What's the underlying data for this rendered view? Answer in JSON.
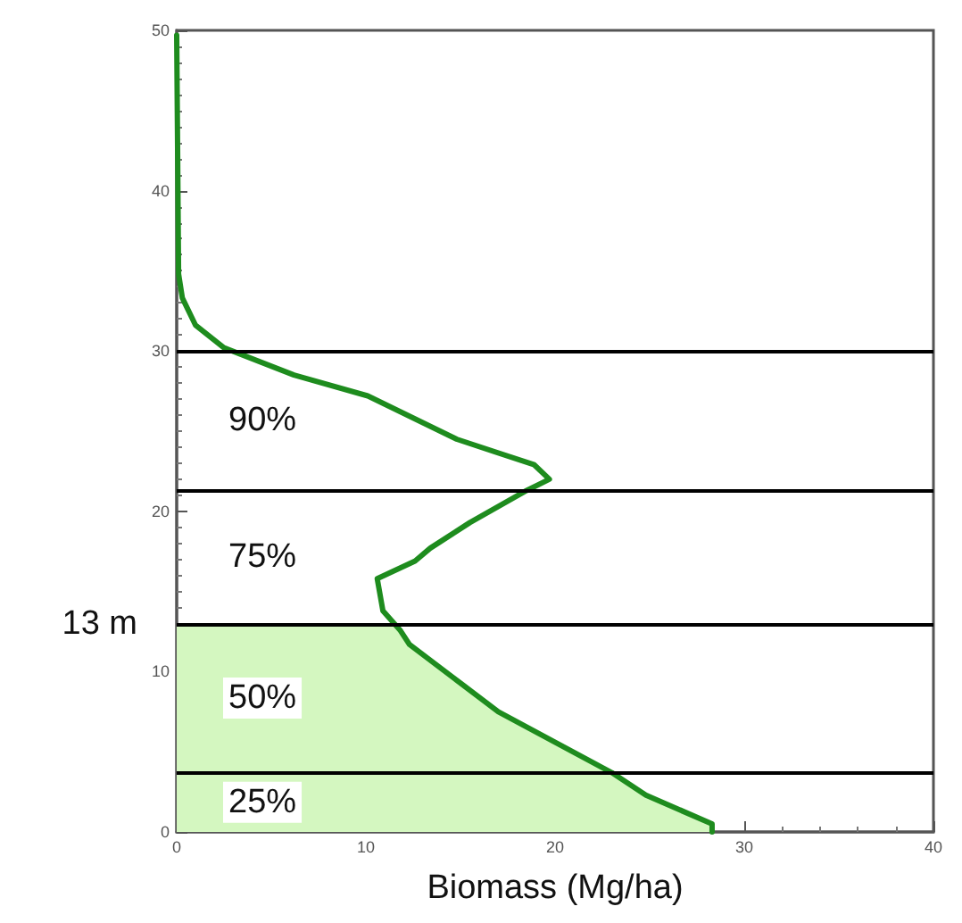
{
  "chart_data": {
    "type": "line",
    "xlabel": "Biomass (Mg/ha)",
    "xlim": [
      0,
      40
    ],
    "xticks": [
      0,
      10,
      20,
      30,
      40
    ],
    "ylim": [
      0,
      50
    ],
    "yticks": [
      0,
      10,
      20,
      30,
      40,
      50
    ],
    "grid": false,
    "marker": "none",
    "line_style": "solid",
    "series": [
      {
        "type": "area",
        "color": "#d4f7c0",
        "x": [
          28.3,
          28.3,
          24.8,
          23,
          17,
          12.3,
          11.6,
          0,
          0
        ],
        "values": [
          0,
          0.5,
          2.3,
          3.7,
          7.5,
          11.7,
          13,
          13,
          0
        ]
      },
      {
        "color": "#1e8c1e",
        "x": [
          28.3,
          28.3,
          24.8,
          23,
          17,
          12.3,
          11.8,
          10.9,
          10.6,
          12.6,
          13.4,
          15.5,
          18.5,
          19.7,
          18.9,
          14.8,
          10.1,
          6.2,
          2.5,
          1.0,
          0.3,
          0.1,
          0
        ],
        "values": [
          0,
          0.5,
          2.3,
          3.7,
          7.5,
          11.7,
          12.6,
          13.8,
          15.8,
          16.9,
          17.7,
          19.3,
          21.3,
          22,
          22.9,
          24.5,
          27.2,
          28.5,
          30.2,
          31.6,
          33.3,
          34.8,
          49.7
        ]
      }
    ],
    "ref_lines": [
      {
        "axis": "y",
        "value": 3.7,
        "color": "#000000"
      },
      {
        "axis": "y",
        "value": 13,
        "label": "13 m",
        "color": "#000000"
      },
      {
        "axis": "y",
        "value": 21.3,
        "color": "#000000"
      },
      {
        "axis": "y",
        "value": 30,
        "color": "#000000"
      }
    ],
    "annotations": [
      "25%",
      "50%",
      "75%",
      "90%"
    ]
  }
}
